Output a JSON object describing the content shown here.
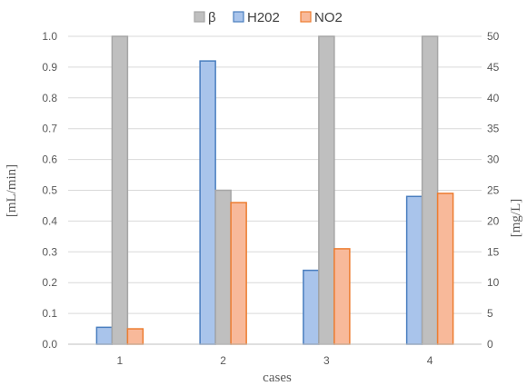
{
  "chart_data": {
    "type": "bar",
    "categories": [
      "1",
      "2",
      "3",
      "4"
    ],
    "xlabel": "cases",
    "ylabel_left": "[mL/min]",
    "ylabel_right": "[mg/L]",
    "ylim_left": [
      0,
      1.0
    ],
    "ylim_right": [
      0,
      50
    ],
    "yticks_left": [
      "0.0",
      "0.1",
      "0.2",
      "0.3",
      "0.4",
      "0.5",
      "0.6",
      "0.7",
      "0.8",
      "0.9",
      "1.0"
    ],
    "yticks_right": [
      "0",
      "5",
      "10",
      "15",
      "20",
      "25",
      "30",
      "35",
      "40",
      "45",
      "50"
    ],
    "legend_position": "top",
    "grid": true,
    "series": [
      {
        "name": "β",
        "axis": "right",
        "values": [
          50,
          25,
          50,
          50
        ],
        "color": "#bfbfbf",
        "border": "#a6a6a6"
      },
      {
        "name": "H2O2",
        "axis": "left",
        "values": [
          0.055,
          0.92,
          0.24,
          0.48
        ],
        "color": "#a9c4eb",
        "border": "#4a7ebf"
      },
      {
        "name": "NO2",
        "axis": "right",
        "values": [
          2.5,
          23,
          15.5,
          24.5
        ],
        "color": "#f8b99a",
        "border": "#ed7d31"
      }
    ],
    "legend_labels": [
      "β",
      "H202",
      "NO2"
    ]
  }
}
